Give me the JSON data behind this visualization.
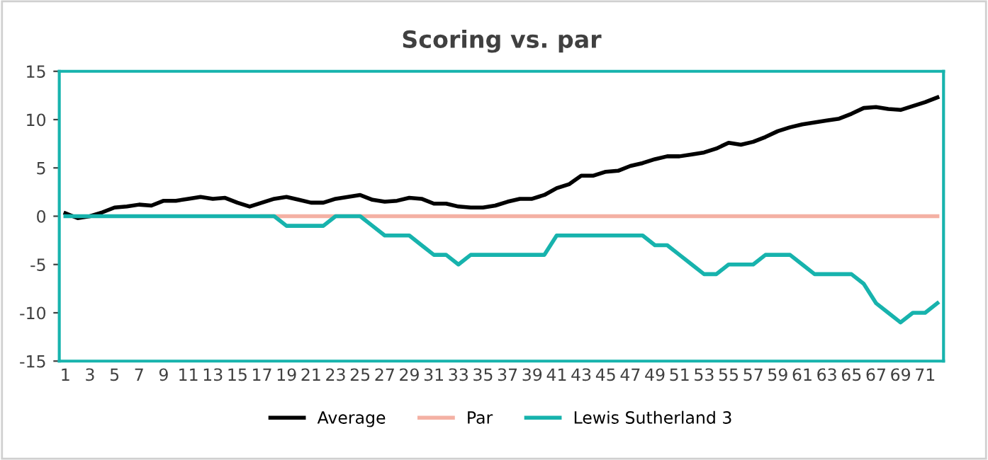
{
  "chart_data": {
    "type": "line",
    "title": "Scoring vs. par",
    "categories": [
      "1",
      null,
      "3",
      null,
      "5",
      null,
      "7",
      null,
      "9",
      null,
      "11",
      null,
      "13",
      null,
      "15",
      null,
      "17",
      null,
      "19",
      null,
      "21",
      null,
      "23",
      null,
      "25",
      null,
      "27",
      null,
      "29",
      null,
      "31",
      null,
      "33",
      null,
      "35",
      null,
      "37",
      null,
      "39",
      null,
      "41",
      null,
      "43",
      null,
      "45",
      null,
      "47",
      null,
      "49",
      null,
      "51",
      null,
      "53",
      null,
      "55",
      null,
      "57",
      null,
      "59",
      null,
      "61",
      null,
      "63",
      null,
      "65",
      null,
      "67",
      null,
      "69",
      null,
      "71",
      null
    ],
    "series": [
      {
        "name": "Average",
        "color": "#000000",
        "values": [
          0.3,
          -0.2,
          0,
          0.4,
          0.9,
          1.0,
          1.2,
          1.1,
          1.6,
          1.6,
          1.8,
          2.0,
          1.8,
          1.9,
          1.4,
          1.0,
          1.4,
          1.8,
          2.0,
          1.7,
          1.4,
          1.4,
          1.8,
          2.0,
          2.2,
          1.7,
          1.5,
          1.6,
          1.9,
          1.8,
          1.3,
          1.3,
          1.0,
          0.9,
          0.9,
          1.1,
          1.5,
          1.8,
          1.8,
          2.2,
          2.9,
          3.3,
          4.2,
          4.2,
          4.6,
          4.7,
          5.2,
          5.5,
          5.9,
          6.2,
          6.2,
          6.4,
          6.6,
          7.0,
          7.6,
          7.4,
          7.7,
          8.2,
          8.8,
          9.2,
          9.5,
          9.7,
          9.9,
          10.1,
          10.6,
          11.2,
          11.3,
          11.1,
          11.0,
          11.4,
          11.8,
          12.3
        ]
      },
      {
        "name": "Par",
        "color": "#f4b1a4",
        "values": [
          null,
          null,
          null,
          null,
          null,
          null,
          null,
          null,
          null,
          null,
          null,
          null,
          null,
          null,
          null,
          null,
          0,
          0,
          0,
          0,
          0,
          0,
          0,
          0,
          0,
          0,
          0,
          0,
          0,
          0,
          0,
          0,
          0,
          0,
          0,
          0,
          0,
          0,
          0,
          0,
          0,
          0,
          0,
          0,
          0,
          0,
          0,
          0,
          0,
          0,
          0,
          0,
          0,
          0,
          0,
          0,
          0,
          0,
          0,
          0,
          0,
          0,
          0,
          0,
          0,
          0,
          0,
          0,
          0,
          0,
          0,
          0
        ]
      },
      {
        "name": "Lewis Sutherland 3",
        "color": "#17b3ad",
        "values": [
          0,
          0,
          0,
          0,
          0,
          0,
          0,
          0,
          0,
          0,
          0,
          0,
          0,
          0,
          0,
          0,
          0,
          0,
          -1,
          -1,
          -1,
          -1,
          0,
          0,
          0,
          -1,
          -2,
          -2,
          -2,
          -3,
          -4,
          -4,
          -5,
          -4,
          -4,
          -4,
          -4,
          -4,
          -4,
          -4,
          -2,
          -2,
          -2,
          -2,
          -2,
          -2,
          -2,
          -2,
          -3,
          -3,
          -4,
          -5,
          -6,
          -6,
          -5,
          -5,
          -5,
          -4,
          -4,
          -4,
          -5,
          -6,
          -6,
          -6,
          -6,
          -7,
          -9,
          -10,
          -11,
          -10,
          -10,
          -9
        ]
      }
    ],
    "ylim": [
      -15,
      15
    ],
    "yticks": [
      -15,
      -10,
      -5,
      0,
      5,
      10,
      15
    ],
    "grid": false,
    "legend": "bottom",
    "marker": "none",
    "line_style": "solid"
  }
}
